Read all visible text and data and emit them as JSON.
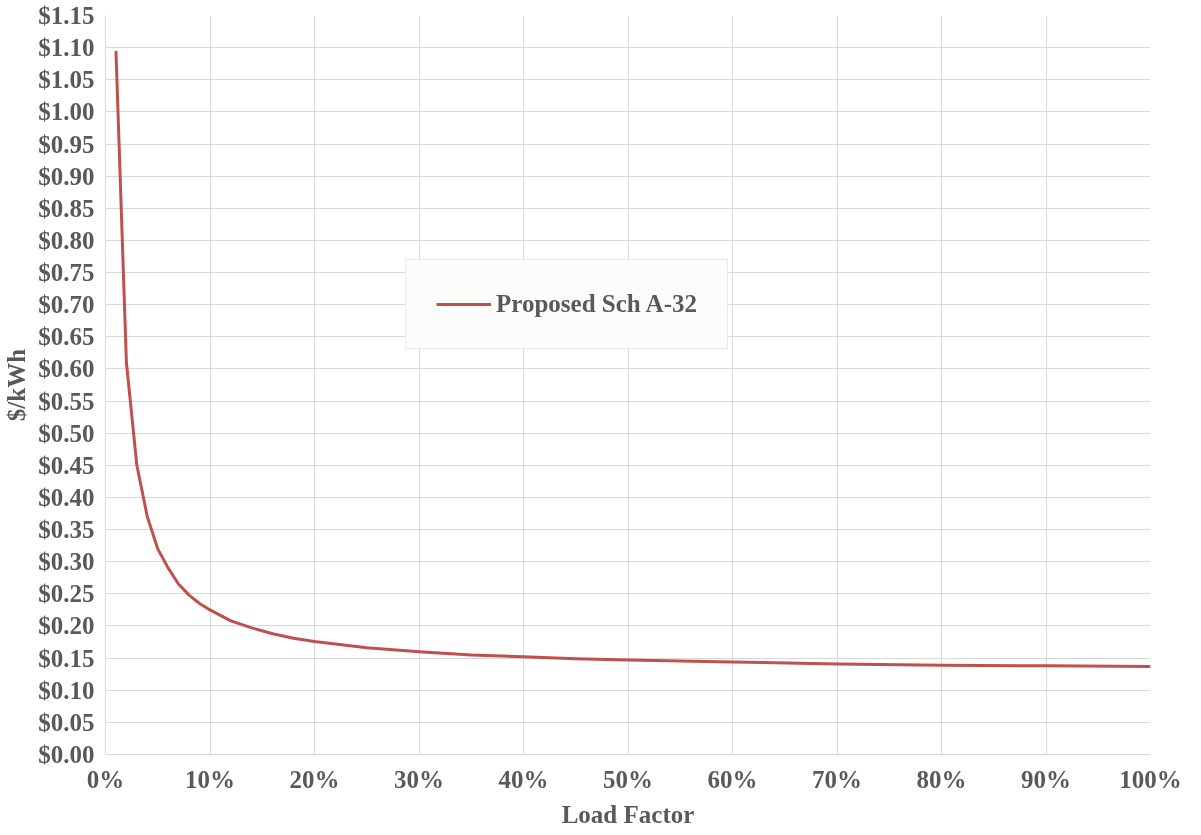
{
  "chart_data": {
    "type": "line",
    "xlabel": "Load Factor",
    "ylabel": "$/kWh",
    "series": [
      {
        "name": "Proposed Sch A-32",
        "color": "#c0504d",
        "x": [
          1,
          2,
          3,
          4,
          5,
          6,
          7,
          8,
          9,
          10,
          12,
          14,
          16,
          18,
          20,
          25,
          30,
          35,
          40,
          45,
          50,
          60,
          70,
          80,
          90,
          100
        ],
        "values": [
          1.095,
          0.61,
          0.45,
          0.37,
          0.32,
          0.29,
          0.265,
          0.248,
          0.235,
          0.225,
          0.208,
          0.197,
          0.188,
          0.181,
          0.176,
          0.166,
          0.16,
          0.155,
          0.152,
          0.149,
          0.147,
          0.144,
          0.141,
          0.139,
          0.138,
          0.137
        ]
      }
    ],
    "xlim": [
      0,
      100
    ],
    "xticks": [
      {
        "value": 0,
        "label": "0%"
      },
      {
        "value": 10,
        "label": "10%"
      },
      {
        "value": 20,
        "label": "20%"
      },
      {
        "value": 30,
        "label": "30%"
      },
      {
        "value": 40,
        "label": "40%"
      },
      {
        "value": 50,
        "label": "50%"
      },
      {
        "value": 60,
        "label": "60%"
      },
      {
        "value": 70,
        "label": "70%"
      },
      {
        "value": 80,
        "label": "80%"
      },
      {
        "value": 90,
        "label": "90%"
      },
      {
        "value": 100,
        "label": "100%"
      }
    ],
    "ylim": [
      0,
      1.15
    ],
    "yticks": [
      {
        "value": 0,
        "label": "$0.00"
      },
      {
        "value": 0.05,
        "label": "$0.05"
      },
      {
        "value": 0.1,
        "label": "$0.10"
      },
      {
        "value": 0.15,
        "label": "$0.15"
      },
      {
        "value": 0.2,
        "label": "$0.20"
      },
      {
        "value": 0.25,
        "label": "$0.25"
      },
      {
        "value": 0.3,
        "label": "$0.30"
      },
      {
        "value": 0.35,
        "label": "$0.35"
      },
      {
        "value": 0.4,
        "label": "$0.40"
      },
      {
        "value": 0.45,
        "label": "$0.45"
      },
      {
        "value": 0.5,
        "label": "$0.50"
      },
      {
        "value": 0.55,
        "label": "$0.55"
      },
      {
        "value": 0.6,
        "label": "$0.60"
      },
      {
        "value": 0.65,
        "label": "$0.65"
      },
      {
        "value": 0.7,
        "label": "$0.70"
      },
      {
        "value": 0.75,
        "label": "$0.75"
      },
      {
        "value": 0.8,
        "label": "$0.80"
      },
      {
        "value": 0.85,
        "label": "$0.85"
      },
      {
        "value": 0.9,
        "label": "$0.90"
      },
      {
        "value": 0.95,
        "label": "$0.95"
      },
      {
        "value": 1.0,
        "label": "$1.00"
      },
      {
        "value": 1.05,
        "label": "$1.05"
      },
      {
        "value": 1.1,
        "label": "$1.10"
      },
      {
        "value": 1.15,
        "label": "$1.15"
      }
    ],
    "grid": true,
    "legend": "top",
    "marker": "none",
    "line_style": "solid"
  }
}
